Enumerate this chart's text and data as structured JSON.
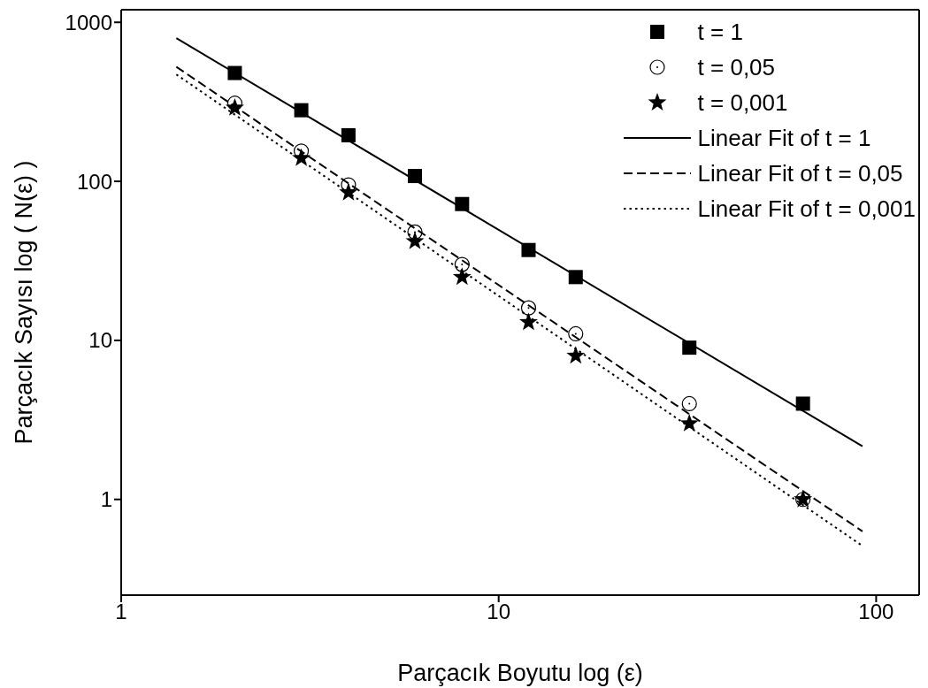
{
  "chart_data": {
    "type": "scatter",
    "xlabel": "Parçacık Boyutu log (ε)",
    "ylabel": "Parçacık Sayısı log ( N(ε) )",
    "log": "xy",
    "xlim": [
      1,
      130
    ],
    "xticks": [
      1,
      10,
      100
    ],
    "ylim": [
      0.25,
      1200
    ],
    "yticks": [
      1,
      10,
      100,
      1000
    ],
    "legend": "top right",
    "series": [
      {
        "name": "t = 1",
        "marker": "square",
        "color": "#000000",
        "x": [
          2,
          3,
          4,
          6,
          8,
          12,
          16,
          32,
          64
        ],
        "values": [
          480,
          280,
          195,
          108,
          72,
          37,
          25,
          9,
          4
        ]
      },
      {
        "name": "t = 0,05",
        "marker": "circle",
        "color": "#000000",
        "x": [
          2,
          3,
          4,
          6,
          8,
          12,
          16,
          32,
          64
        ],
        "values": [
          310,
          155,
          95,
          48,
          30,
          16,
          11,
          4,
          1
        ]
      },
      {
        "name": "t = 0,001",
        "marker": "star",
        "color": "#000000",
        "x": [
          2,
          3,
          4,
          6,
          8,
          12,
          16,
          32,
          64
        ],
        "values": [
          290,
          140,
          85,
          42,
          25,
          13,
          8,
          3,
          1
        ]
      },
      {
        "name": "Linear Fit of t = 1",
        "type": "line",
        "marker": "none",
        "line_style": "solid",
        "color": "#000000",
        "x": [
          1.4,
          92
        ],
        "values": [
          795,
          2.16
        ]
      },
      {
        "name": "Linear Fit of t = 0,05",
        "type": "line",
        "marker": "none",
        "line_style": "dashed",
        "color": "#000000",
        "x": [
          1.4,
          92
        ],
        "values": [
          525,
          0.63
        ]
      },
      {
        "name": "Linear Fit of t = 0,001",
        "type": "line",
        "marker": "none",
        "line_style": "dotted",
        "color": "#000000",
        "x": [
          1.4,
          92
        ],
        "values": [
          470,
          0.51
        ]
      }
    ]
  }
}
